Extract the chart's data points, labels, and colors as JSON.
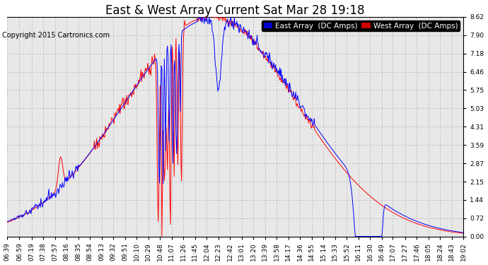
{
  "title": "East & West Array Current Sat Mar 28 19:18",
  "copyright": "Copyright 2015 Cartronics.com",
  "legend_east": "East Array  (DC Amps)",
  "legend_west": "West Array  (DC Amps)",
  "east_color": "#0000ff",
  "west_color": "#ff0000",
  "legend_east_bg": "#0000cc",
  "legend_west_bg": "#cc0000",
  "background_color": "#ffffff",
  "plot_bg_color": "#e8e8e8",
  "grid_color": "#aaaaaa",
  "ylim": [
    0.0,
    8.62
  ],
  "yticks": [
    0.0,
    0.72,
    1.44,
    2.15,
    2.87,
    3.59,
    4.31,
    5.03,
    5.75,
    6.46,
    7.18,
    7.9,
    8.62
  ],
  "xtick_labels": [
    "06:39",
    "06:59",
    "07:19",
    "07:38",
    "07:57",
    "08:16",
    "08:35",
    "08:54",
    "09:13",
    "09:32",
    "09:51",
    "10:10",
    "10:29",
    "10:48",
    "11:07",
    "11:26",
    "11:45",
    "12:04",
    "12:23",
    "12:42",
    "13:01",
    "13:20",
    "13:39",
    "13:58",
    "14:17",
    "14:36",
    "14:55",
    "15:14",
    "15:33",
    "15:52",
    "16:11",
    "16:30",
    "16:49",
    "17:07",
    "17:27",
    "17:46",
    "18:05",
    "18:24",
    "18:43",
    "19:02"
  ],
  "title_fontsize": 12,
  "copyright_fontsize": 7,
  "tick_fontsize": 6.5,
  "legend_fontsize": 7.5
}
